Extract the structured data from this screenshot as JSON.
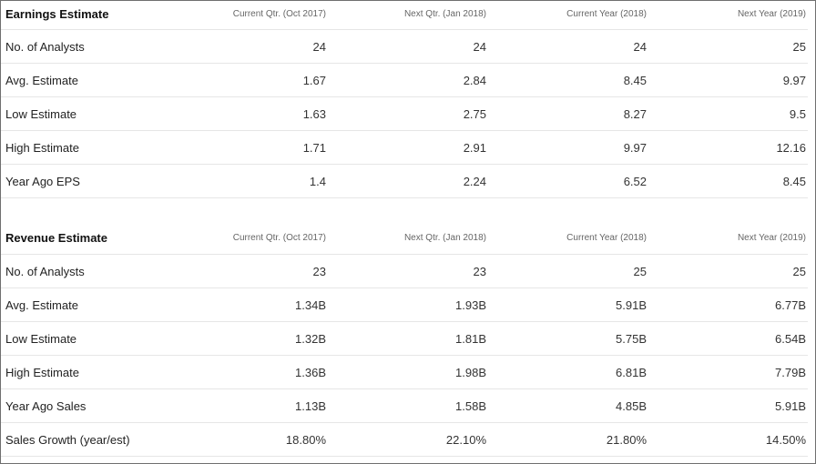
{
  "earnings": {
    "title": "Earnings Estimate",
    "columns": [
      "Current Qtr. (Oct 2017)",
      "Next Qtr. (Jan 2018)",
      "Current Year (2018)",
      "Next Year (2019)"
    ],
    "rows": [
      {
        "label": "No. of Analysts",
        "values": [
          "24",
          "24",
          "24",
          "25"
        ]
      },
      {
        "label": "Avg. Estimate",
        "values": [
          "1.67",
          "2.84",
          "8.45",
          "9.97"
        ]
      },
      {
        "label": "Low Estimate",
        "values": [
          "1.63",
          "2.75",
          "8.27",
          "9.5"
        ]
      },
      {
        "label": "High Estimate",
        "values": [
          "1.71",
          "2.91",
          "9.97",
          "12.16"
        ]
      },
      {
        "label": "Year Ago EPS",
        "values": [
          "1.4",
          "2.24",
          "6.52",
          "8.45"
        ]
      }
    ]
  },
  "revenue": {
    "title": "Revenue Estimate",
    "columns": [
      "Current Qtr. (Oct 2017)",
      "Next Qtr. (Jan 2018)",
      "Current Year (2018)",
      "Next Year (2019)"
    ],
    "rows": [
      {
        "label": "No. of Analysts",
        "values": [
          "23",
          "23",
          "25",
          "25"
        ]
      },
      {
        "label": "Avg. Estimate",
        "values": [
          "1.34B",
          "1.93B",
          "5.91B",
          "6.77B"
        ]
      },
      {
        "label": "Low Estimate",
        "values": [
          "1.32B",
          "1.81B",
          "5.75B",
          "6.54B"
        ]
      },
      {
        "label": "High Estimate",
        "values": [
          "1.36B",
          "1.98B",
          "6.81B",
          "7.79B"
        ]
      },
      {
        "label": "Year Ago Sales",
        "values": [
          "1.13B",
          "1.58B",
          "4.85B",
          "5.91B"
        ]
      },
      {
        "label": "Sales Growth (year/est)",
        "values": [
          "18.80%",
          "22.10%",
          "21.80%",
          "14.50%"
        ]
      }
    ]
  }
}
